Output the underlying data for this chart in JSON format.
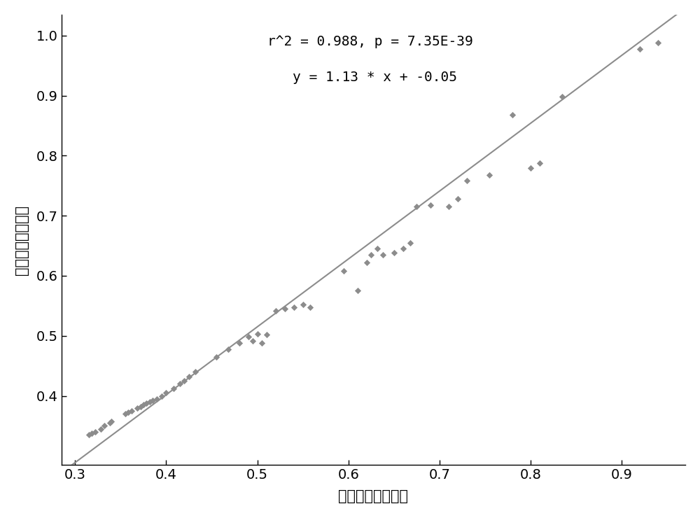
{
  "title_line1": "r^2 = 0.988, p = 7.35E-39",
  "title_line2": "y = 1.13 * x + -0.05",
  "xlabel": "预测每月存活概率",
  "ylabel": "实际每月存活概率",
  "xlim": [
    0.285,
    0.97
  ],
  "ylim": [
    0.285,
    1.035
  ],
  "xticks": [
    0.3,
    0.4,
    0.5,
    0.6,
    0.7,
    0.8,
    0.9
  ],
  "yticks": [
    0.4,
    0.5,
    0.6,
    0.7,
    0.8,
    0.9,
    1.0
  ],
  "slope": 1.13,
  "intercept": -0.05,
  "scatter_color": "#8c8c8c",
  "line_color": "#8c8c8c",
  "x_data": [
    0.315,
    0.318,
    0.322,
    0.328,
    0.332,
    0.338,
    0.34,
    0.355,
    0.358,
    0.362,
    0.368,
    0.372,
    0.375,
    0.378,
    0.382,
    0.385,
    0.39,
    0.395,
    0.4,
    0.408,
    0.415,
    0.42,
    0.425,
    0.432,
    0.455,
    0.468,
    0.48,
    0.49,
    0.495,
    0.5,
    0.505,
    0.51,
    0.52,
    0.53,
    0.54,
    0.55,
    0.558,
    0.595,
    0.61,
    0.62,
    0.625,
    0.632,
    0.638,
    0.65,
    0.66,
    0.668,
    0.675,
    0.69,
    0.71,
    0.72,
    0.73,
    0.755,
    0.78,
    0.8,
    0.81,
    0.835,
    0.92,
    0.94
  ],
  "y_data": [
    0.335,
    0.338,
    0.34,
    0.345,
    0.35,
    0.355,
    0.358,
    0.37,
    0.373,
    0.375,
    0.38,
    0.382,
    0.385,
    0.388,
    0.39,
    0.392,
    0.395,
    0.4,
    0.405,
    0.412,
    0.42,
    0.425,
    0.432,
    0.44,
    0.465,
    0.478,
    0.488,
    0.498,
    0.492,
    0.503,
    0.488,
    0.502,
    0.542,
    0.545,
    0.548,
    0.552,
    0.548,
    0.608,
    0.575,
    0.622,
    0.635,
    0.645,
    0.635,
    0.638,
    0.645,
    0.655,
    0.715,
    0.718,
    0.715,
    0.728,
    0.758,
    0.768,
    0.868,
    0.78,
    0.788,
    0.898,
    0.978,
    0.988
  ]
}
